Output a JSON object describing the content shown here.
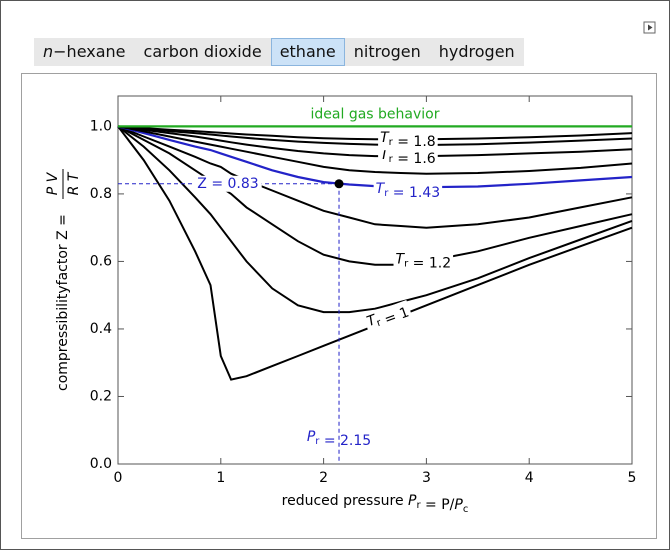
{
  "tabs": [
    "n−hexane",
    "carbon dioxide",
    "ethane",
    "nitrogen",
    "hydrogen"
  ],
  "selected_tab": 2,
  "chart_data": {
    "type": "line",
    "x_label": "reduced pressure Pr = P/Pc",
    "y_label": "compressibilityfactor Z =",
    "y_label_numerator": "P V",
    "y_label_denominator": "R T",
    "x": [
      0,
      0.25,
      0.5,
      0.75,
      0.9,
      1,
      1.1,
      1.25,
      1.5,
      1.75,
      2,
      2.25,
      2.5,
      2.75,
      3,
      3.5,
      4,
      4.5,
      5
    ],
    "series": [
      {
        "name": "Tr = 1",
        "color": "#000000",
        "values": [
          1,
          0.9,
          0.78,
          0.63,
          0.53,
          0.32,
          0.25,
          0.26,
          0.29,
          0.32,
          0.35,
          0.38,
          0.41,
          0.44,
          0.47,
          0.53,
          0.59,
          0.645,
          0.7
        ]
      },
      {
        "color": "#000000",
        "values": [
          1,
          0.94,
          0.87,
          0.79,
          0.74,
          0.7,
          0.66,
          0.6,
          0.52,
          0.47,
          0.45,
          0.45,
          0.46,
          0.48,
          0.5,
          0.55,
          0.61,
          0.665,
          0.72
        ]
      },
      {
        "name": "Tr = 1.2",
        "color": "#000000",
        "values": [
          1,
          0.96,
          0.92,
          0.87,
          0.84,
          0.82,
          0.8,
          0.76,
          0.71,
          0.66,
          0.62,
          0.6,
          0.59,
          0.59,
          0.6,
          0.63,
          0.67,
          0.705,
          0.74
        ]
      },
      {
        "color": "#000000",
        "values": [
          1,
          0.97,
          0.94,
          0.91,
          0.89,
          0.88,
          0.86,
          0.84,
          0.81,
          0.78,
          0.75,
          0.73,
          0.71,
          0.705,
          0.7,
          0.71,
          0.73,
          0.76,
          0.79
        ]
      },
      {
        "name": "Tr = 1.43",
        "color": "#2323c8",
        "values": [
          1,
          0.98,
          0.96,
          0.94,
          0.93,
          0.92,
          0.91,
          0.895,
          0.87,
          0.85,
          0.835,
          0.828,
          0.823,
          0.82,
          0.82,
          0.822,
          0.83,
          0.84,
          0.85
        ]
      },
      {
        "color": "#000000",
        "values": [
          1,
          0.985,
          0.97,
          0.955,
          0.946,
          0.94,
          0.934,
          0.925,
          0.91,
          0.895,
          0.88,
          0.87,
          0.865,
          0.862,
          0.86,
          0.862,
          0.868,
          0.877,
          0.89
        ]
      },
      {
        "name": "Tr = 1.6",
        "color": "#000000",
        "values": [
          1,
          0.99,
          0.98,
          0.97,
          0.963,
          0.958,
          0.953,
          0.946,
          0.936,
          0.927,
          0.92,
          0.915,
          0.912,
          0.911,
          0.912,
          0.915,
          0.92,
          0.925,
          0.932
        ]
      },
      {
        "color": "#000000",
        "values": [
          1,
          0.993,
          0.986,
          0.98,
          0.976,
          0.973,
          0.97,
          0.966,
          0.96,
          0.955,
          0.951,
          0.948,
          0.946,
          0.945,
          0.945,
          0.947,
          0.952,
          0.958,
          0.964
        ]
      },
      {
        "name": "Tr = 1.8",
        "color": "#000000",
        "values": [
          1,
          0.995,
          0.99,
          0.986,
          0.983,
          0.981,
          0.979,
          0.976,
          0.972,
          0.968,
          0.965,
          0.963,
          0.962,
          0.962,
          0.962,
          0.964,
          0.968,
          0.973,
          0.98
        ]
      },
      {
        "name": "ideal gas behavior",
        "color": "#22aa22",
        "values": [
          1,
          1,
          1,
          1,
          1,
          1,
          1,
          1,
          1,
          1,
          1,
          1,
          1,
          1,
          1,
          1,
          1,
          1,
          1
        ]
      }
    ],
    "point": {
      "x": 2.15,
      "y": 0.83,
      "color": "#2323c8"
    },
    "point_y_label": "Z = 0.83",
    "point_x_label": "Pr = 2.15",
    "xlim": [
      0,
      5
    ],
    "ylim": [
      0,
      1.09
    ],
    "xticks": [
      0,
      1,
      2,
      3,
      4,
      5
    ],
    "yticks": [
      {
        "value": 0,
        "label": "0.0"
      },
      0.2,
      0.4,
      0.6,
      0.8,
      {
        "value": 1,
        "label": "1.0"
      }
    ]
  }
}
